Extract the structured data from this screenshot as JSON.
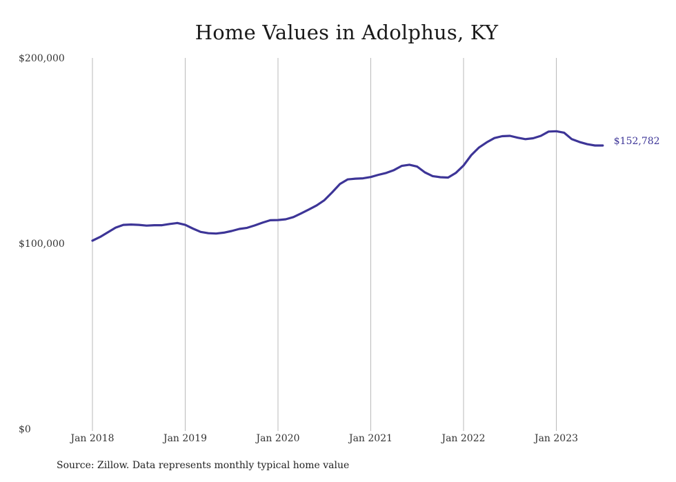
{
  "chart_data": {
    "type": "line",
    "title": "Home Values in Adolphus, KY",
    "xlabel": "",
    "ylabel": "",
    "ylim": [
      0,
      200000
    ],
    "y_ticks": [
      {
        "value": 0,
        "label": "$0"
      },
      {
        "value": 100000,
        "label": "$100,000"
      },
      {
        "value": 200000,
        "label": "$200,000"
      }
    ],
    "x_ticks": [
      {
        "value": "2018-01",
        "label": "Jan 2018"
      },
      {
        "value": "2019-01",
        "label": "Jan 2019"
      },
      {
        "value": "2020-01",
        "label": "Jan 2020"
      },
      {
        "value": "2021-01",
        "label": "Jan 2021"
      },
      {
        "value": "2022-01",
        "label": "Jan 2022"
      },
      {
        "value": "2023-01",
        "label": "Jan 2023"
      }
    ],
    "grid": {
      "vertical": true,
      "horizontal": false
    },
    "series": [
      {
        "color": "#3d3597",
        "x": [
          "2018-01",
          "2018-02",
          "2018-03",
          "2018-04",
          "2018-05",
          "2018-06",
          "2018-07",
          "2018-08",
          "2018-09",
          "2018-10",
          "2018-11",
          "2018-12",
          "2019-01",
          "2019-02",
          "2019-03",
          "2019-04",
          "2019-05",
          "2019-06",
          "2019-07",
          "2019-08",
          "2019-09",
          "2019-10",
          "2019-11",
          "2019-12",
          "2020-01",
          "2020-02",
          "2020-03",
          "2020-04",
          "2020-05",
          "2020-06",
          "2020-07",
          "2020-08",
          "2020-09",
          "2020-10",
          "2020-11",
          "2020-12",
          "2021-01",
          "2021-02",
          "2021-03",
          "2021-04",
          "2021-05",
          "2021-06",
          "2021-07",
          "2021-08",
          "2021-09",
          "2021-10",
          "2021-11",
          "2021-12",
          "2022-01",
          "2022-02",
          "2022-03",
          "2022-04",
          "2022-05",
          "2022-06",
          "2022-07",
          "2022-08",
          "2022-09",
          "2022-10",
          "2022-11",
          "2022-12",
          "2023-01",
          "2023-02",
          "2023-03",
          "2023-04",
          "2023-05",
          "2023-06",
          "2023-07"
        ],
        "values": [
          101500,
          103500,
          106000,
          108500,
          110000,
          110200,
          110000,
          109600,
          109800,
          109800,
          110500,
          111000,
          110000,
          108000,
          106200,
          105500,
          105300,
          105800,
          106700,
          107800,
          108400,
          109700,
          111200,
          112500,
          112600,
          113000,
          114200,
          116200,
          118300,
          120500,
          123300,
          127500,
          132000,
          134500,
          134900,
          135100,
          135800,
          137000,
          138000,
          139500,
          141800,
          142400,
          141400,
          138300,
          136300,
          135700,
          135500,
          138000,
          142000,
          147600,
          151700,
          154500,
          156800,
          157800,
          158000,
          157000,
          156200,
          156700,
          158000,
          160300,
          160500,
          159700,
          156200,
          154700,
          153500,
          152782,
          152782
        ]
      }
    ],
    "end_label": "$152,782",
    "source": "Source: Zillow. Data represents monthly typical home value"
  }
}
